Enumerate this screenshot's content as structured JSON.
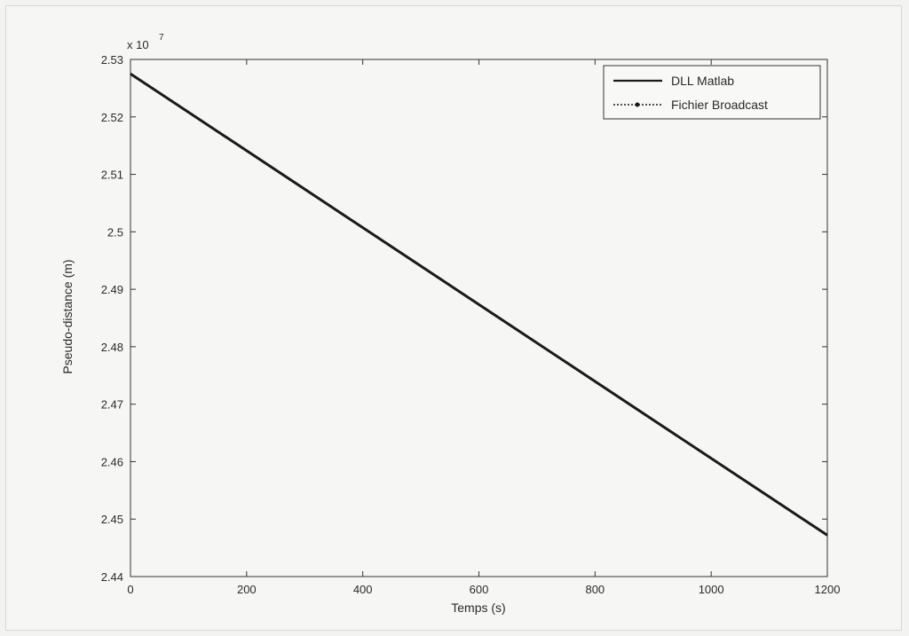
{
  "chart_data": {
    "type": "line",
    "title": "",
    "xlabel": "Temps (s)",
    "ylabel": "Pseudo-distance (m)",
    "y_exponent_base": "x 10",
    "y_exponent_power": "7",
    "xlim": [
      0,
      1200
    ],
    "ylim": [
      2.44,
      2.53
    ],
    "xticks": [
      0,
      200,
      400,
      600,
      800,
      1000,
      1200
    ],
    "xtick_labels": [
      "0",
      "200",
      "400",
      "600",
      "800",
      "1000",
      "1200"
    ],
    "yticks": [
      2.44,
      2.45,
      2.46,
      2.47,
      2.48,
      2.49,
      2.5,
      2.51,
      2.52,
      2.53
    ],
    "ytick_labels": [
      "2.44",
      "2.45",
      "2.46",
      "2.47",
      "2.48",
      "2.49",
      "2.5",
      "2.51",
      "2.52",
      "2.53"
    ],
    "grid": false,
    "legend_position": "top-right",
    "series": [
      {
        "name": "DLL Matlab",
        "style": "solid",
        "color": "#1a1a1a",
        "x": [
          0,
          1200
        ],
        "y": [
          2.5275,
          2.4472
        ]
      },
      {
        "name": "Fichier Broadcast",
        "style": "dotted",
        "color": "#1a1a1a",
        "x": [
          0,
          1200
        ],
        "y": [
          2.5275,
          2.4472
        ]
      }
    ]
  }
}
